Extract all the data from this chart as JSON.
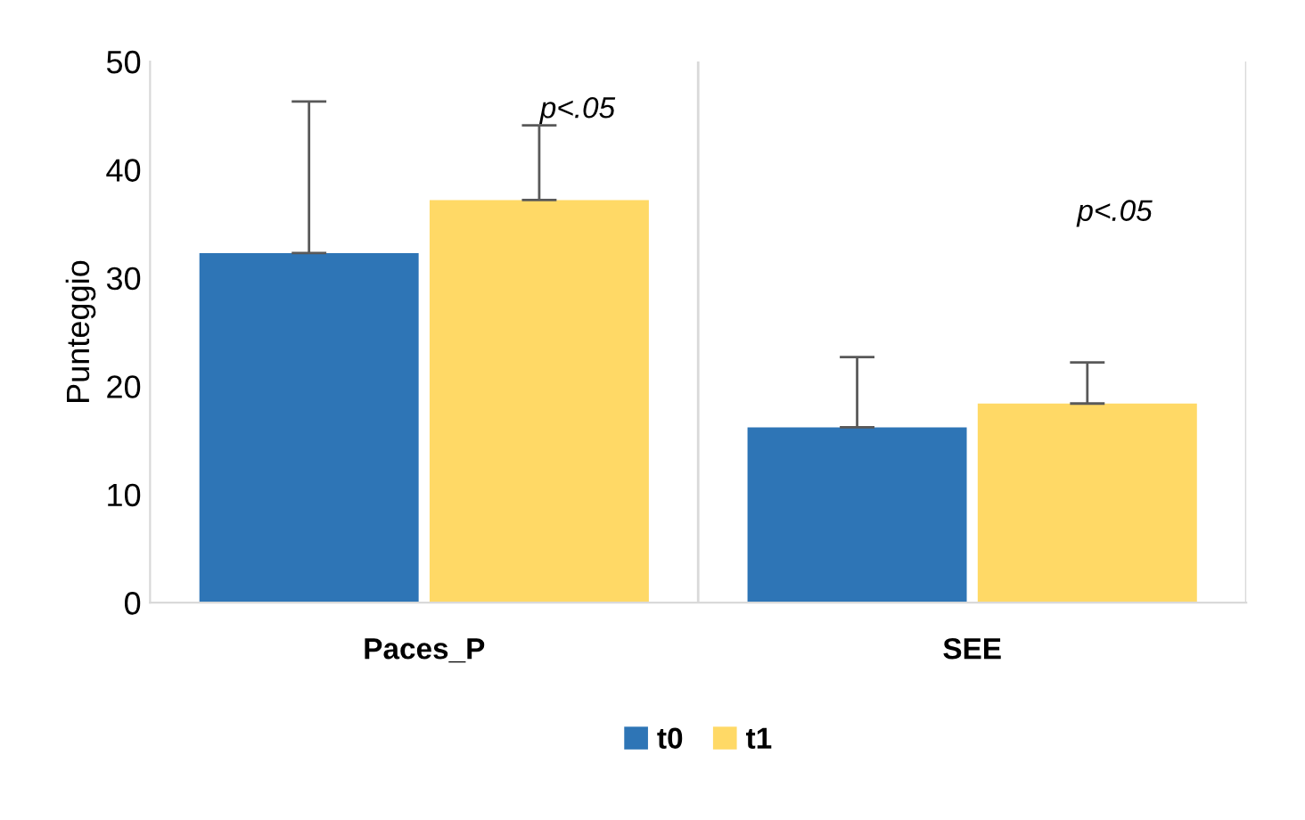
{
  "chart_data": {
    "type": "bar",
    "ylabel": "Punteggio",
    "categories": [
      "Paces_P",
      "SEE"
    ],
    "series": [
      {
        "name": "t0",
        "color": "#2e75b6",
        "values": [
          32.3,
          16.2
        ],
        "errors": [
          [
            32.3,
            46.3
          ],
          [
            16.2,
            22.7
          ]
        ]
      },
      {
        "name": "t1",
        "color": "#ffd966",
        "values": [
          37.2,
          18.4
        ],
        "errors": [
          [
            37.2,
            44.1
          ],
          [
            18.4,
            22.2
          ]
        ]
      }
    ],
    "ylim": [
      0,
      50
    ],
    "yticks": [
      0,
      10,
      20,
      30,
      40,
      50
    ],
    "grid": "x",
    "legend": "bottom",
    "annotations": [
      "p<.05",
      "p<.05"
    ]
  }
}
